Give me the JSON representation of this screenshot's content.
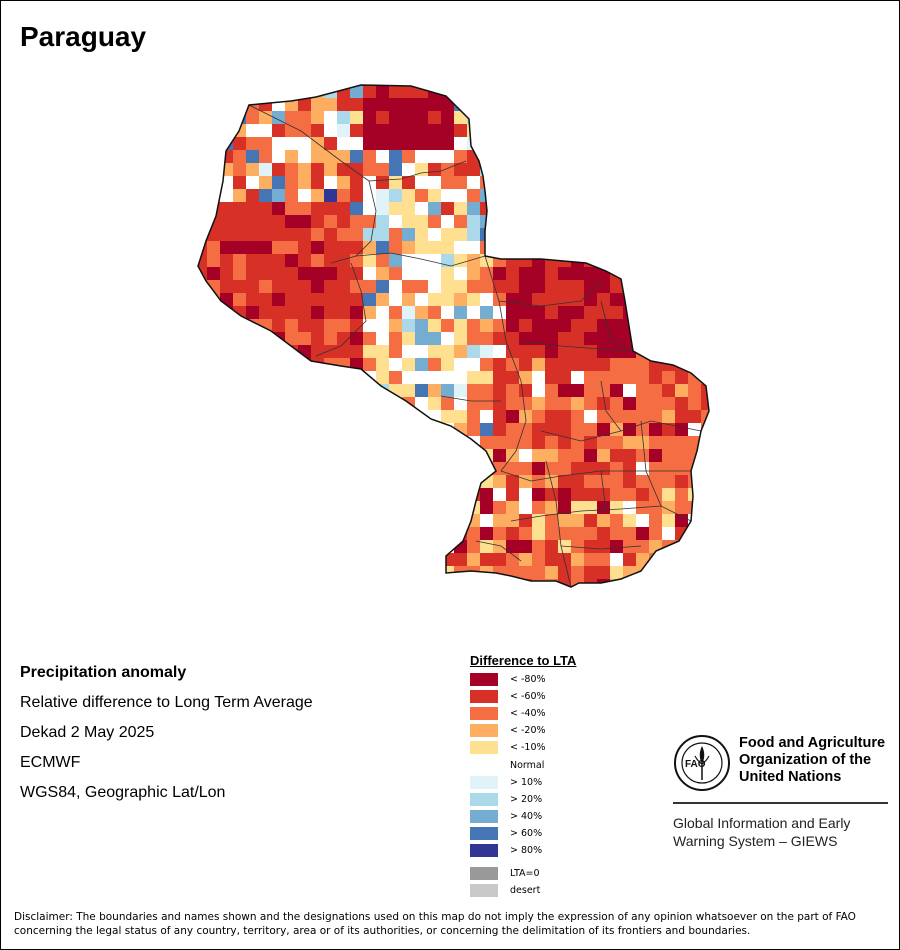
{
  "title": "Paraguay",
  "info": {
    "heading": "Precipitation anomaly",
    "line1": "Relative difference to Long Term Average",
    "line2": "Dekad 2 May 2025",
    "line3": "ECMWF",
    "line4": "WGS84, Geographic Lat/Lon"
  },
  "legend": {
    "title": "Difference to LTA",
    "items": [
      {
        "label": "< -80%",
        "color": "#a50026"
      },
      {
        "label": "< -60%",
        "color": "#d73027"
      },
      {
        "label": "< -40%",
        "color": "#f46d43"
      },
      {
        "label": "< -20%",
        "color": "#fdae61"
      },
      {
        "label": "< -10%",
        "color": "#fee090"
      },
      {
        "label": "Normal",
        "color": "#ffffff"
      },
      {
        "label": "> 10%",
        "color": "#e0f3f8"
      },
      {
        "label": "> 20%",
        "color": "#abd9e9"
      },
      {
        "label": "> 40%",
        "color": "#74add1"
      },
      {
        "label": "> 60%",
        "color": "#4575b4"
      },
      {
        "label": "> 80%",
        "color": "#313695"
      }
    ],
    "extra": [
      {
        "label": "LTA=0",
        "color": "#999999"
      },
      {
        "label": "desert",
        "color": "#c8c8c8"
      }
    ]
  },
  "org": {
    "name_line1": "Food and Agriculture",
    "name_line2": "Organization of the",
    "name_line3": "United Nations",
    "system_line1": "Global Information and Early",
    "system_line2": "Warning System – GIEWS",
    "logo_text": "FAO",
    "logo_motto": "FIAT PANIS"
  },
  "disclaimer": {
    "line1": "Disclaimer: The boundaries and names shown and the designations used on this map do not imply the expression of any opinion whatsoever on the part of FAO",
    "line2": "concerning the legal status of any country, territory, area or of its authorities, or concerning the delimitation of its frontiers and boundaries."
  }
}
